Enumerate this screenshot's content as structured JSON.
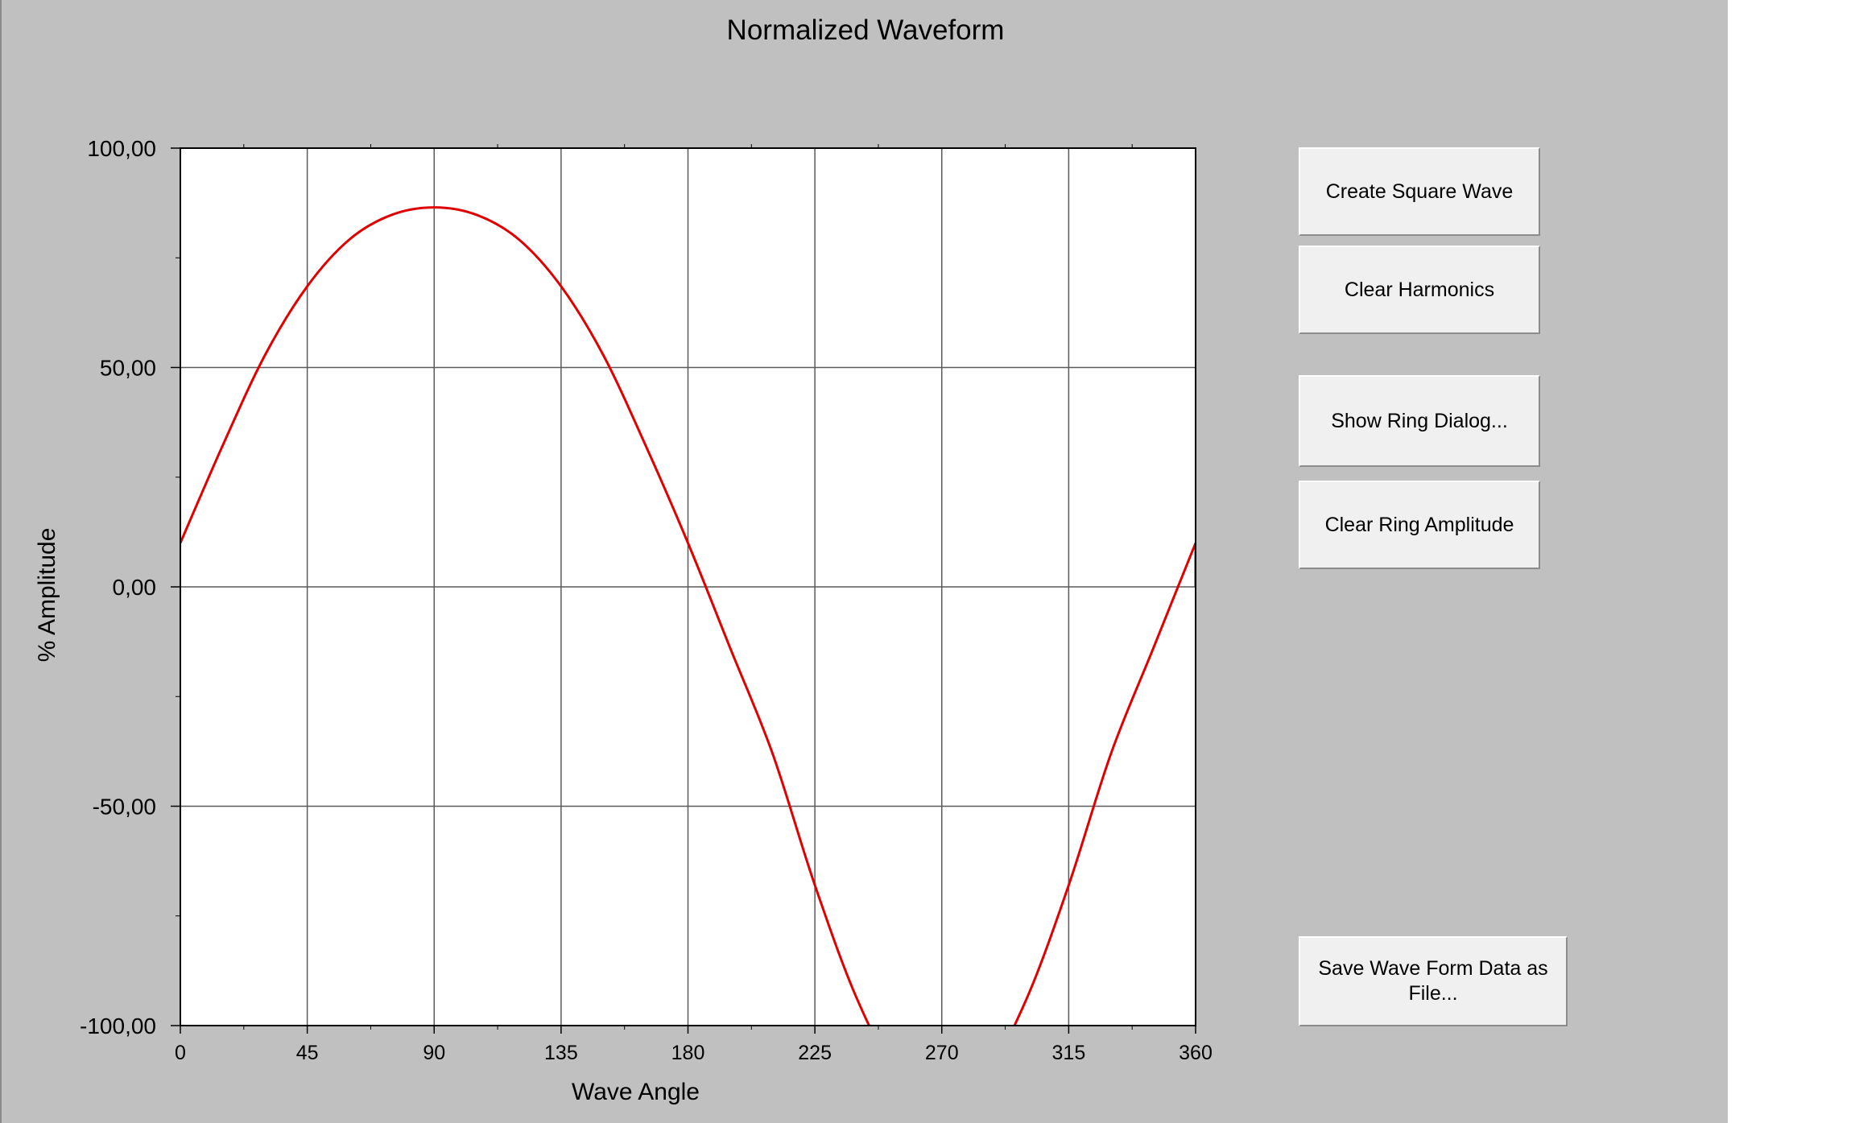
{
  "window": {
    "title": "Normalized Waveform"
  },
  "buttons": {
    "create_square": "Create Square Wave",
    "clear_harmonics": "Clear Harmonics",
    "show_ring": "Show Ring Dialog...",
    "clear_ring": "Clear Ring Amplitude",
    "save_wave": "Save Wave Form Data as File..."
  },
  "colors": {
    "panel": "#c0c0c0",
    "plot_bg": "#ffffff",
    "grid": "#5a5a5a",
    "series": "#e00000"
  },
  "chart_data": {
    "type": "line",
    "title": "Normalized Waveform",
    "xlabel": "Wave Angle",
    "ylabel": "% Amplitude",
    "xlim": [
      0,
      360
    ],
    "ylim": [
      -100,
      100
    ],
    "x_ticks": [
      0,
      45,
      90,
      135,
      180,
      225,
      270,
      315,
      360
    ],
    "y_ticks": [
      100,
      50,
      0,
      -50,
      -100
    ],
    "y_tick_labels": [
      "100,00",
      "50,00",
      "0,00",
      "-50,00",
      "-100,00"
    ],
    "grid": true,
    "legend": "none",
    "series": [
      {
        "color": "#e00000",
        "clipped_to_ylim": true,
        "x": [
          0,
          15,
          30,
          45,
          60,
          75,
          90,
          105,
          120,
          135,
          150,
          165,
          180,
          195,
          210,
          225,
          240,
          255,
          270,
          285,
          300,
          315,
          330,
          345,
          360
        ],
        "y": [
          10.0,
          32.2,
          52.8,
          68.5,
          79.2,
          84.8,
          86.5,
          84.8,
          79.2,
          68.5,
          52.8,
          32.2,
          10.0,
          -14.0,
          -38.0,
          -68.0,
          -94.0,
          -112.0,
          -118.0,
          -112.0,
          -94.0,
          -68.0,
          -38.0,
          -14.0,
          10.0
        ]
      }
    ]
  }
}
